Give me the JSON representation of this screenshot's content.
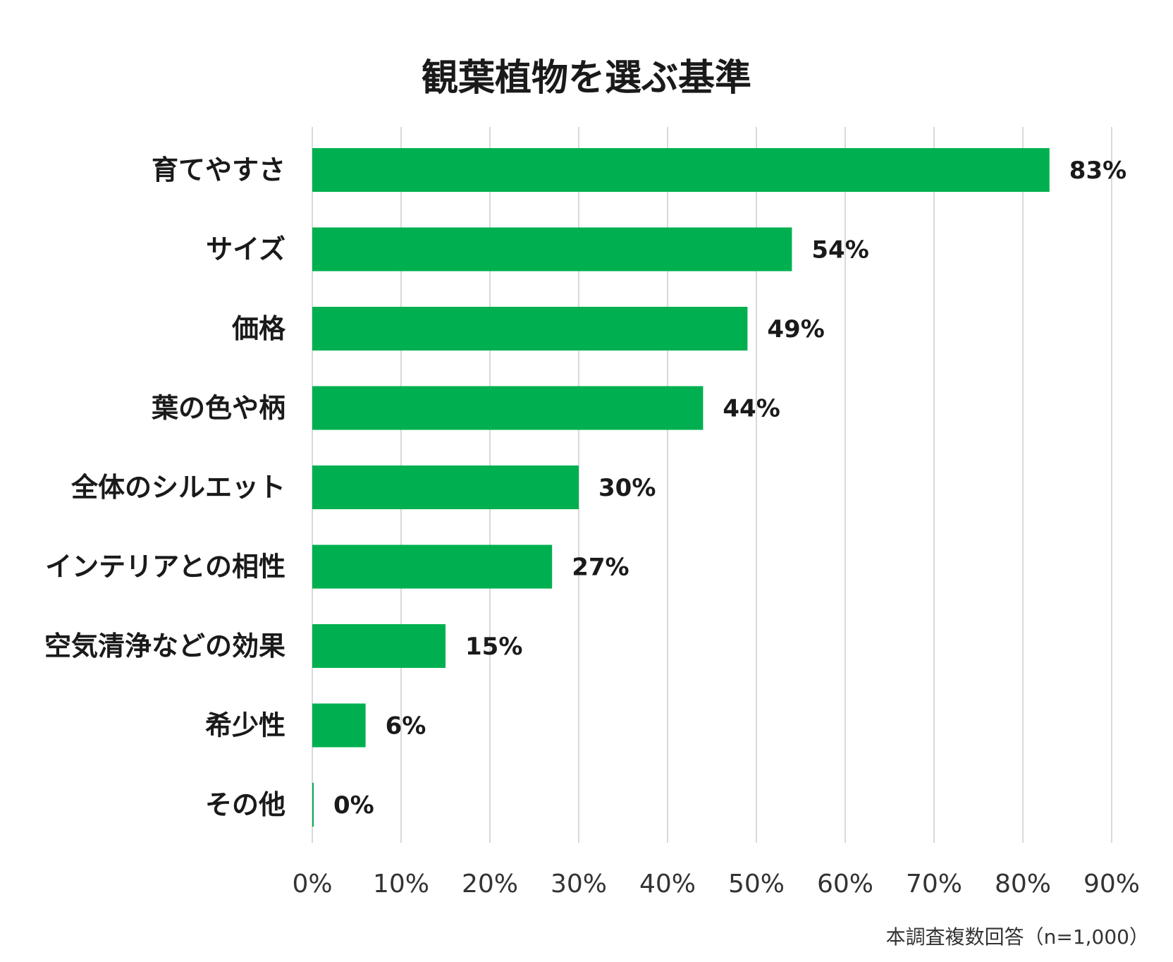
{
  "chart_data": {
    "type": "bar",
    "orientation": "horizontal",
    "title": "観葉植物を選ぶ基準",
    "categories": [
      "育てやすさ",
      "サイズ",
      "価格",
      "葉の色や柄",
      "全体のシルエット",
      "インテリアとの相性",
      "空気清浄などの効果",
      "希少性",
      "その他"
    ],
    "values": [
      83,
      54,
      49,
      44,
      30,
      27,
      15,
      6,
      0
    ],
    "value_labels": [
      "83%",
      "54%",
      "49%",
      "44%",
      "30%",
      "27%",
      "15%",
      "6%",
      "0%"
    ],
    "xlim": [
      0,
      90
    ],
    "x_ticks": [
      0,
      10,
      20,
      30,
      40,
      50,
      60,
      70,
      80,
      90
    ],
    "x_tick_labels": [
      "0%",
      "10%",
      "20%",
      "30%",
      "40%",
      "50%",
      "60%",
      "70%",
      "80%",
      "90%"
    ],
    "xlabel": "",
    "ylabel": "",
    "grid": true,
    "bar_color": "#00b050",
    "footnote": "本調査複数回答（n=1,000）"
  }
}
